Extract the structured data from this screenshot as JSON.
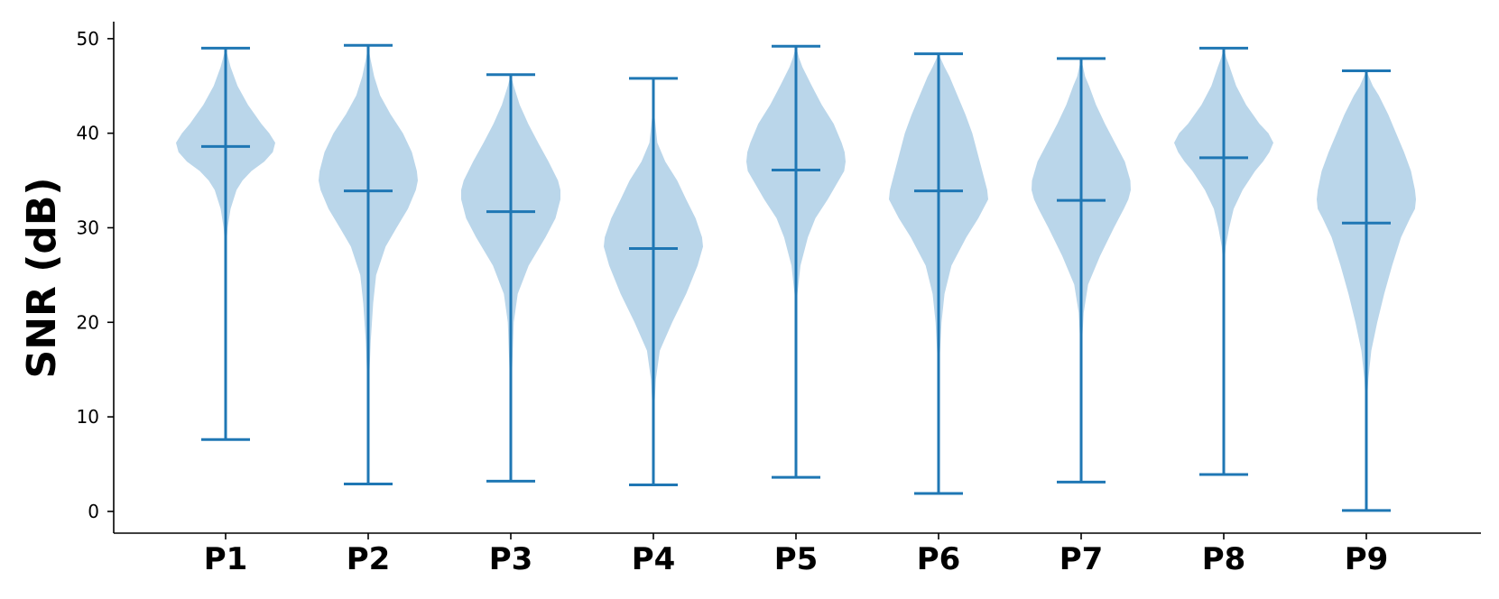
{
  "chart_data": {
    "type": "violin",
    "title": "",
    "xlabel": "",
    "ylabel": "SNR (dB)",
    "ylim": [
      -2.3,
      51.8
    ],
    "yticks": [
      0,
      10,
      20,
      30,
      40,
      50
    ],
    "grid": false,
    "colors": {
      "line": "#1f77b4",
      "body": "#bad6ea",
      "axis": "#000000"
    },
    "categories": [
      "P1",
      "P2",
      "P3",
      "P4",
      "P5",
      "P6",
      "P7",
      "P8",
      "P9"
    ],
    "violins": [
      {
        "name": "P1",
        "min": 7.6,
        "max": 49.0,
        "median": 38.6,
        "profile": [
          [
            7.6,
            0.0
          ],
          [
            27,
            0.0
          ],
          [
            28,
            0.01
          ],
          [
            30,
            0.04
          ],
          [
            32,
            0.1
          ],
          [
            34,
            0.22
          ],
          [
            35,
            0.34
          ],
          [
            36,
            0.52
          ],
          [
            37,
            0.78
          ],
          [
            38,
            0.95
          ],
          [
            39,
            1.0
          ],
          [
            40,
            0.88
          ],
          [
            41,
            0.72
          ],
          [
            43,
            0.45
          ],
          [
            45,
            0.24
          ],
          [
            47,
            0.1
          ],
          [
            48,
            0.05
          ],
          [
            49,
            0.0
          ]
        ]
      },
      {
        "name": "P2",
        "min": 2.9,
        "max": 49.3,
        "median": 33.9,
        "profile": [
          [
            2.9,
            0.0
          ],
          [
            10,
            0.0
          ],
          [
            14,
            0.02
          ],
          [
            18,
            0.05
          ],
          [
            22,
            0.1
          ],
          [
            25,
            0.16
          ],
          [
            28,
            0.35
          ],
          [
            30,
            0.57
          ],
          [
            32,
            0.8
          ],
          [
            34,
            0.96
          ],
          [
            35,
            1.0
          ],
          [
            36,
            0.98
          ],
          [
            38,
            0.88
          ],
          [
            40,
            0.7
          ],
          [
            42,
            0.45
          ],
          [
            44,
            0.24
          ],
          [
            46,
            0.12
          ],
          [
            48,
            0.04
          ],
          [
            49.3,
            0.0
          ]
        ]
      },
      {
        "name": "P3",
        "min": 3.2,
        "max": 46.2,
        "median": 31.7,
        "profile": [
          [
            3.2,
            0.0
          ],
          [
            10,
            0.0
          ],
          [
            14,
            0.02
          ],
          [
            17,
            0.04
          ],
          [
            20,
            0.06
          ],
          [
            23,
            0.14
          ],
          [
            26,
            0.36
          ],
          [
            29,
            0.7
          ],
          [
            31,
            0.9
          ],
          [
            33,
            1.0
          ],
          [
            34,
            1.0
          ],
          [
            35,
            0.95
          ],
          [
            37,
            0.76
          ],
          [
            39,
            0.55
          ],
          [
            41,
            0.35
          ],
          [
            43,
            0.18
          ],
          [
            45,
            0.06
          ],
          [
            46.2,
            0.0
          ]
        ]
      },
      {
        "name": "P4",
        "min": 2.8,
        "max": 45.8,
        "median": 27.8,
        "profile": [
          [
            2.8,
            0.0
          ],
          [
            8,
            0.0
          ],
          [
            11,
            0.02
          ],
          [
            14,
            0.05
          ],
          [
            17,
            0.13
          ],
          [
            20,
            0.38
          ],
          [
            23,
            0.66
          ],
          [
            26,
            0.89
          ],
          [
            28,
            1.0
          ],
          [
            29,
            0.98
          ],
          [
            31,
            0.85
          ],
          [
            33,
            0.66
          ],
          [
            35,
            0.48
          ],
          [
            37,
            0.24
          ],
          [
            39,
            0.08
          ],
          [
            42,
            0.02
          ],
          [
            45.8,
            0.0
          ]
        ]
      },
      {
        "name": "P5",
        "min": 3.6,
        "max": 49.2,
        "median": 36.1,
        "profile": [
          [
            3.6,
            0.0
          ],
          [
            18,
            0.0
          ],
          [
            21,
            0.01
          ],
          [
            23,
            0.03
          ],
          [
            26,
            0.09
          ],
          [
            29,
            0.24
          ],
          [
            31,
            0.39
          ],
          [
            33,
            0.64
          ],
          [
            35,
            0.86
          ],
          [
            36,
            0.97
          ],
          [
            37,
            1.0
          ],
          [
            38,
            0.98
          ],
          [
            39,
            0.92
          ],
          [
            41,
            0.76
          ],
          [
            43,
            0.52
          ],
          [
            45,
            0.32
          ],
          [
            47,
            0.13
          ],
          [
            48,
            0.06
          ],
          [
            49.2,
            0.0
          ]
        ]
      },
      {
        "name": "P6",
        "min": 1.9,
        "max": 48.4,
        "median": 33.9,
        "profile": [
          [
            1.9,
            0.0
          ],
          [
            12,
            0.0
          ],
          [
            16,
            0.02
          ],
          [
            20,
            0.06
          ],
          [
            23,
            0.12
          ],
          [
            26,
            0.26
          ],
          [
            29,
            0.56
          ],
          [
            31,
            0.8
          ],
          [
            33,
            1.0
          ],
          [
            34,
            0.98
          ],
          [
            36,
            0.88
          ],
          [
            38,
            0.78
          ],
          [
            40,
            0.68
          ],
          [
            42,
            0.54
          ],
          [
            44,
            0.38
          ],
          [
            46,
            0.22
          ],
          [
            47,
            0.12
          ],
          [
            48.4,
            0.0
          ]
        ]
      },
      {
        "name": "P7",
        "min": 3.1,
        "max": 47.9,
        "median": 32.9,
        "profile": [
          [
            3.1,
            0.0
          ],
          [
            12,
            0.0
          ],
          [
            15,
            0.01
          ],
          [
            18,
            0.02
          ],
          [
            21,
            0.05
          ],
          [
            24,
            0.14
          ],
          [
            27,
            0.38
          ],
          [
            30,
            0.66
          ],
          [
            32,
            0.86
          ],
          [
            33,
            0.95
          ],
          [
            34,
            1.0
          ],
          [
            35,
            0.99
          ],
          [
            37,
            0.88
          ],
          [
            39,
            0.68
          ],
          [
            41,
            0.48
          ],
          [
            43,
            0.3
          ],
          [
            45,
            0.16
          ],
          [
            46,
            0.08
          ],
          [
            47.9,
            0.0
          ]
        ]
      },
      {
        "name": "P8",
        "min": 3.9,
        "max": 49.0,
        "median": 37.4,
        "profile": [
          [
            3.9,
            0.0
          ],
          [
            24,
            0.0
          ],
          [
            26,
            0.01
          ],
          [
            28,
            0.04
          ],
          [
            30,
            0.11
          ],
          [
            32,
            0.2
          ],
          [
            34,
            0.38
          ],
          [
            36,
            0.63
          ],
          [
            37,
            0.79
          ],
          [
            38,
            0.92
          ],
          [
            39,
            1.0
          ],
          [
            40,
            0.9
          ],
          [
            41,
            0.72
          ],
          [
            43,
            0.45
          ],
          [
            45,
            0.25
          ],
          [
            47,
            0.12
          ],
          [
            48,
            0.05
          ],
          [
            49,
            0.0
          ]
        ]
      },
      {
        "name": "P9",
        "min": 0.1,
        "max": 46.6,
        "median": 30.5,
        "profile": [
          [
            0.1,
            0.0
          ],
          [
            8,
            0.0
          ],
          [
            11,
            0.01
          ],
          [
            14,
            0.04
          ],
          [
            17,
            0.1
          ],
          [
            20,
            0.22
          ],
          [
            23,
            0.36
          ],
          [
            26,
            0.52
          ],
          [
            29,
            0.7
          ],
          [
            31,
            0.88
          ],
          [
            32,
            0.98
          ],
          [
            33,
            1.0
          ],
          [
            34,
            0.98
          ],
          [
            36,
            0.9
          ],
          [
            38,
            0.76
          ],
          [
            40,
            0.6
          ],
          [
            42,
            0.44
          ],
          [
            44,
            0.25
          ],
          [
            45,
            0.13
          ],
          [
            46.6,
            0.0
          ]
        ]
      }
    ]
  }
}
